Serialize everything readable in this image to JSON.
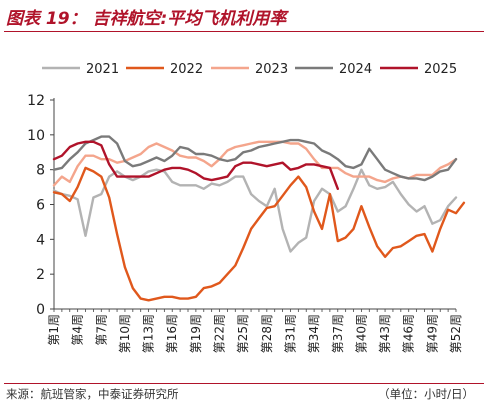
{
  "header": {
    "title": "图表 19：  吉祥航空:平均飞机利用率"
  },
  "footer": {
    "source": "来源：航班管家，中泰证券研究所",
    "unit": "（单位：小时/日）"
  },
  "chart_data": {
    "type": "line",
    "title": "",
    "xlabel": "",
    "ylabel": "",
    "ylim": [
      0,
      12
    ],
    "yticks": [
      0,
      2,
      4,
      6,
      8,
      10,
      12
    ],
    "grid": false,
    "legend_position": "top",
    "x_tick_labels": [
      "第1周",
      "第4周",
      "第7周",
      "第10周",
      "第13周",
      "第16周",
      "第19周",
      "第22周",
      "第25周",
      "第28周",
      "第31周",
      "第34周",
      "第37周",
      "第40周",
      "第43周",
      "第46周",
      "第49周",
      "第52周"
    ],
    "x_tick_weeks": [
      1,
      4,
      7,
      10,
      13,
      16,
      19,
      22,
      25,
      28,
      31,
      34,
      37,
      40,
      43,
      46,
      49,
      52
    ],
    "series": [
      {
        "name": "2021",
        "color": "#b3b3b3",
        "values": [
          6.8,
          6.6,
          6.5,
          6.3,
          4.2,
          6.4,
          6.6,
          7.6,
          7.9,
          7.6,
          7.4,
          7.6,
          7.9,
          8.0,
          7.9,
          7.3,
          7.1,
          7.1,
          7.1,
          6.9,
          7.2,
          7.1,
          7.3,
          7.6,
          7.6,
          6.6,
          6.2,
          5.9,
          6.9,
          4.6,
          3.3,
          3.8,
          4.1,
          6.2,
          6.9,
          6.6,
          5.6,
          5.9,
          6.9,
          8.0,
          7.1,
          6.9,
          7.0,
          7.3,
          6.6,
          6.0,
          5.6,
          5.9,
          4.9,
          5.1,
          5.9,
          6.4
        ]
      },
      {
        "name": "2022",
        "color": "#e0581c",
        "values": [
          6.7,
          6.6,
          6.2,
          7.0,
          8.1,
          7.9,
          7.6,
          6.4,
          4.3,
          2.4,
          1.2,
          0.6,
          0.5,
          0.6,
          0.7,
          0.7,
          0.6,
          0.6,
          0.7,
          1.2,
          1.3,
          1.5,
          2.0,
          2.5,
          3.5,
          4.6,
          5.2,
          5.8,
          5.9,
          6.5,
          7.1,
          7.6,
          7.0,
          5.6,
          4.6,
          6.6,
          3.9,
          4.1,
          4.6,
          5.9,
          4.7,
          3.6,
          3.0,
          3.5,
          3.6,
          3.9,
          4.2,
          4.3,
          3.3,
          4.6,
          5.7,
          5.5,
          6.1
        ]
      },
      {
        "name": "2023",
        "color": "#f4a58c",
        "values": [
          7.1,
          7.6,
          7.3,
          8.2,
          8.8,
          8.8,
          8.6,
          8.6,
          8.4,
          8.5,
          8.7,
          8.9,
          9.3,
          9.5,
          9.3,
          9.1,
          8.8,
          8.7,
          8.7,
          8.5,
          8.2,
          8.6,
          9.1,
          9.3,
          9.4,
          9.5,
          9.6,
          9.6,
          9.6,
          9.6,
          9.5,
          9.5,
          9.2,
          8.6,
          8.1,
          8.1,
          8.1,
          7.8,
          7.6,
          7.6,
          7.6,
          7.4,
          7.3,
          7.5,
          7.6,
          7.5,
          7.7,
          7.7,
          7.7,
          8.1,
          8.3,
          8.6
        ]
      },
      {
        "name": "2024",
        "color": "#7a7a7a",
        "values": [
          8.0,
          8.1,
          8.6,
          9.0,
          9.5,
          9.7,
          9.9,
          9.9,
          9.5,
          8.5,
          8.2,
          8.3,
          8.5,
          8.7,
          8.5,
          8.8,
          9.3,
          9.2,
          8.9,
          8.9,
          8.8,
          8.6,
          8.5,
          8.6,
          9.0,
          9.1,
          9.3,
          9.4,
          9.5,
          9.6,
          9.7,
          9.7,
          9.6,
          9.5,
          9.1,
          8.9,
          8.6,
          8.2,
          8.1,
          8.3,
          9.2,
          8.6,
          8.0,
          7.8,
          7.6,
          7.5,
          7.5,
          7.4,
          7.6,
          7.9,
          8.0,
          8.6
        ]
      },
      {
        "name": "2025",
        "color": "#b0132a",
        "values": [
          8.6,
          8.8,
          9.3,
          9.5,
          9.6,
          9.6,
          9.4,
          8.3,
          7.6,
          7.6,
          7.6,
          7.6,
          7.6,
          7.8,
          8.0,
          8.1,
          8.1,
          8.0,
          7.8,
          7.5,
          7.4,
          7.5,
          7.6,
          8.2,
          8.4,
          8.4,
          8.3,
          8.2,
          8.3,
          8.4,
          8.0,
          8.1,
          8.3,
          8.3,
          8.2,
          8.1,
          6.9
        ]
      }
    ]
  }
}
